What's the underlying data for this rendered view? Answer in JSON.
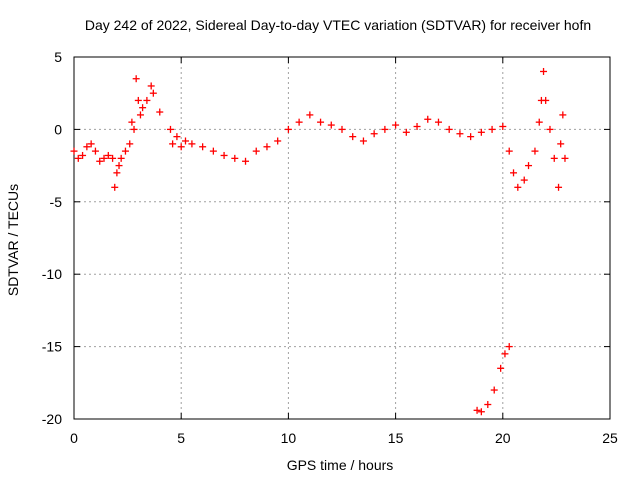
{
  "chart_data": {
    "type": "scatter",
    "title": "Day 242 of 2022, Sidereal Day-to-day VTEC variation (SDTVAR) for receiver hofn",
    "xlabel": "GPS time / hours",
    "ylabel": "SDTVAR / TECUs",
    "xlim": [
      0,
      25
    ],
    "ylim": [
      -20,
      5
    ],
    "x_ticks": [
      0,
      5,
      10,
      15,
      20,
      25
    ],
    "y_ticks": [
      5,
      0,
      -5,
      -10,
      -15,
      -20
    ],
    "x_tick_labels": [
      "0",
      "5",
      "10",
      "15",
      "20",
      "25"
    ],
    "y_tick_labels": [
      "5",
      "0",
      "-5",
      "-10",
      "-15",
      "-20"
    ],
    "grid": true,
    "marker": "+",
    "series": [
      {
        "name": "SDTVAR",
        "color": "#ff0000",
        "x": [
          0.0,
          0.2,
          0.4,
          0.6,
          0.8,
          1.0,
          1.2,
          1.4,
          1.6,
          1.8,
          1.9,
          2.0,
          2.1,
          2.2,
          2.4,
          2.6,
          2.7,
          2.8,
          2.9,
          3.0,
          3.1,
          3.2,
          3.4,
          3.6,
          3.7,
          4.0,
          4.5,
          4.6,
          4.8,
          5.0,
          5.2,
          5.5,
          6.0,
          6.5,
          7.0,
          7.5,
          8.0,
          8.5,
          9.0,
          9.5,
          10.0,
          10.5,
          11.0,
          11.5,
          12.0,
          12.5,
          13.0,
          13.5,
          14.0,
          14.5,
          15.0,
          15.5,
          16.0,
          16.5,
          17.0,
          17.5,
          18.0,
          18.5,
          19.0,
          19.5,
          20.0,
          20.3,
          20.5,
          20.7,
          21.0,
          21.2,
          21.5,
          21.7,
          21.8,
          21.9,
          22.0,
          22.2,
          22.4,
          22.6,
          22.7,
          22.8,
          22.9,
          18.8,
          19.0,
          19.3,
          19.6,
          19.9,
          20.1,
          20.3
        ],
        "y": [
          -1.5,
          -2.0,
          -1.8,
          -1.2,
          -1.0,
          -1.5,
          -2.2,
          -2.0,
          -1.8,
          -2.0,
          -4.0,
          -3.0,
          -2.5,
          -2.0,
          -1.5,
          -1.0,
          0.5,
          0.0,
          3.5,
          2.0,
          1.0,
          1.5,
          2.0,
          3.0,
          2.5,
          1.2,
          0.0,
          -1.0,
          -0.5,
          -1.2,
          -0.8,
          -1.0,
          -1.2,
          -1.5,
          -1.8,
          -2.0,
          -2.2,
          -1.5,
          -1.2,
          -0.8,
          0.0,
          0.5,
          1.0,
          0.5,
          0.3,
          0.0,
          -0.5,
          -0.8,
          -0.3,
          0.0,
          0.3,
          -0.2,
          0.2,
          0.7,
          0.5,
          0.0,
          -0.3,
          -0.5,
          -0.2,
          0.0,
          0.2,
          -1.5,
          -3.0,
          -4.0,
          -3.5,
          -2.5,
          -1.5,
          0.5,
          2.0,
          4.0,
          2.0,
          0.0,
          -2.0,
          -4.0,
          -1.0,
          1.0,
          -2.0,
          -19.4,
          -19.5,
          -19.0,
          -18.0,
          -16.5,
          -15.5,
          -15.0
        ]
      }
    ]
  }
}
